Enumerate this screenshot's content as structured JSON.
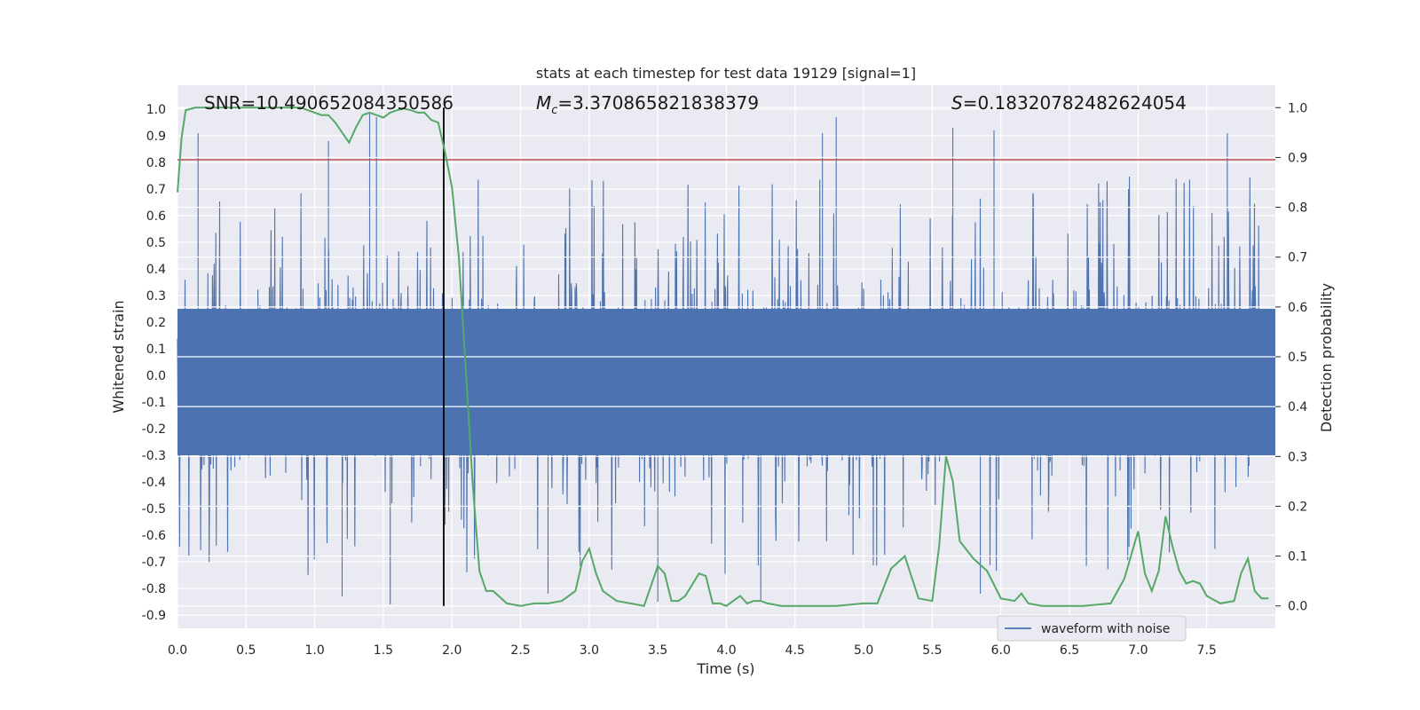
{
  "chart_data": {
    "type": "line",
    "title": "stats at each timestep for test data 19129 [signal=1]",
    "xlabel": "Time (s)",
    "ylabel": "Whitened strain",
    "ylabel_right": "Detection probability",
    "xlim": [
      0.0,
      8.0
    ],
    "ylim": [
      -0.95,
      1.09
    ],
    "ylim_right": [
      -0.045,
      1.045
    ],
    "x_ticks": [
      "0.0",
      "0.5",
      "1.0",
      "1.5",
      "2.0",
      "2.5",
      "3.0",
      "3.5",
      "4.0",
      "4.5",
      "5.0",
      "5.5",
      "6.0",
      "6.5",
      "7.0",
      "7.5"
    ],
    "y_ticks": [
      "1.0",
      "0.9",
      "0.8",
      "0.7",
      "0.6",
      "0.5",
      "0.4",
      "0.3",
      "0.2",
      "0.1",
      "0.0",
      "-0.1",
      "-0.2",
      "-0.3",
      "-0.4",
      "-0.5",
      "-0.6",
      "-0.7",
      "-0.8",
      "-0.9"
    ],
    "y_ticks_right": [
      "1.0",
      "0.9",
      "0.8",
      "0.7",
      "0.6",
      "0.5",
      "0.4",
      "0.3",
      "0.2",
      "0.1",
      "0.0"
    ],
    "grid": true,
    "legend_position": "lower-right",
    "annotations": {
      "snr": "SNR=10.490652084350586",
      "mc_symbol": "M",
      "mc_sub": "c",
      "mc_value": "=3.370865821838379",
      "s_symbol": "S",
      "s_value": "=0.18320782482624054"
    },
    "series": [
      {
        "name": "waveform with noise",
        "axis": "left",
        "kind": "dense-noise-waveform",
        "color": "#4c72b0",
        "envelope_min": -0.87,
        "envelope_max": 0.99,
        "core_band": [
          -0.3,
          0.25
        ],
        "peaks": [
          {
            "x": 0.15,
            "y": 0.91
          },
          {
            "x": 1.1,
            "y": 0.88
          },
          {
            "x": 1.4,
            "y": 0.99
          },
          {
            "x": 1.45,
            "y": 0.97
          },
          {
            "x": 4.7,
            "y": 0.91
          },
          {
            "x": 4.8,
            "y": 0.97
          },
          {
            "x": 5.65,
            "y": 0.93
          },
          {
            "x": 5.95,
            "y": 0.92
          },
          {
            "x": 7.65,
            "y": 0.91
          }
        ],
        "troughs": [
          {
            "x": 1.2,
            "y": -0.83
          },
          {
            "x": 1.55,
            "y": -0.86
          },
          {
            "x": 2.7,
            "y": -0.82
          },
          {
            "x": 3.5,
            "y": -0.85
          },
          {
            "x": 4.25,
            "y": -0.85
          },
          {
            "x": 5.85,
            "y": -0.82
          }
        ]
      },
      {
        "name": "",
        "axis": "right",
        "color": "#55a868",
        "x": [
          0.0,
          0.03,
          0.06,
          0.13,
          0.2,
          0.3,
          0.5,
          0.7,
          0.9,
          1.0,
          1.05,
          1.1,
          1.15,
          1.2,
          1.25,
          1.3,
          1.35,
          1.4,
          1.45,
          1.5,
          1.55,
          1.6,
          1.65,
          1.7,
          1.75,
          1.8,
          1.85,
          1.9,
          1.95,
          2.0,
          2.05,
          2.1,
          2.15,
          2.2,
          2.25,
          2.3,
          2.4,
          2.5,
          2.6,
          2.7,
          2.8,
          2.9,
          2.95,
          3.0,
          3.05,
          3.1,
          3.15,
          3.2,
          3.3,
          3.4,
          3.5,
          3.55,
          3.6,
          3.65,
          3.7,
          3.8,
          3.85,
          3.9,
          3.95,
          4.0,
          4.05,
          4.1,
          4.15,
          4.2,
          4.25,
          4.3,
          4.4,
          4.5,
          4.6,
          4.8,
          5.0,
          5.1,
          5.2,
          5.3,
          5.4,
          5.5,
          5.55,
          5.6,
          5.62,
          5.65,
          5.7,
          5.8,
          5.9,
          6.0,
          6.1,
          6.15,
          6.2,
          6.3,
          6.4,
          6.6,
          6.8,
          6.9,
          7.0,
          7.05,
          7.1,
          7.15,
          7.2,
          7.25,
          7.3,
          7.35,
          7.4,
          7.45,
          7.5,
          7.6,
          7.7,
          7.75,
          7.8,
          7.85,
          7.9,
          7.95
        ],
        "y": [
          0.83,
          0.94,
          0.995,
          1.0,
          1.0,
          1.0,
          1.0,
          1.0,
          1.0,
          0.99,
          0.985,
          0.985,
          0.97,
          0.95,
          0.93,
          0.96,
          0.985,
          0.99,
          0.985,
          0.98,
          0.99,
          0.995,
          0.998,
          0.995,
          0.99,
          0.99,
          0.975,
          0.97,
          0.91,
          0.84,
          0.7,
          0.48,
          0.25,
          0.07,
          0.03,
          0.03,
          0.005,
          0.0,
          0.005,
          0.005,
          0.01,
          0.03,
          0.09,
          0.115,
          0.065,
          0.03,
          0.02,
          0.01,
          0.005,
          0.0,
          0.08,
          0.065,
          0.01,
          0.01,
          0.02,
          0.065,
          0.06,
          0.005,
          0.005,
          0.0,
          0.01,
          0.02,
          0.005,
          0.01,
          0.01,
          0.005,
          0.0,
          0.0,
          0.0,
          0.0,
          0.005,
          0.005,
          0.075,
          0.1,
          0.015,
          0.01,
          0.12,
          0.3,
          0.28,
          0.25,
          0.13,
          0.095,
          0.07,
          0.015,
          0.01,
          0.025,
          0.005,
          0.0,
          0.0,
          0.0,
          0.005,
          0.055,
          0.15,
          0.065,
          0.03,
          0.07,
          0.18,
          0.12,
          0.07,
          0.045,
          0.05,
          0.045,
          0.02,
          0.005,
          0.01,
          0.065,
          0.095,
          0.03,
          0.015,
          0.015
        ]
      }
    ],
    "reference_lines": [
      {
        "kind": "horizontal",
        "axis": "left",
        "y": 0.81,
        "color": "#c44e52"
      },
      {
        "kind": "vertical",
        "x": 1.94,
        "color": "#000000"
      }
    ]
  }
}
